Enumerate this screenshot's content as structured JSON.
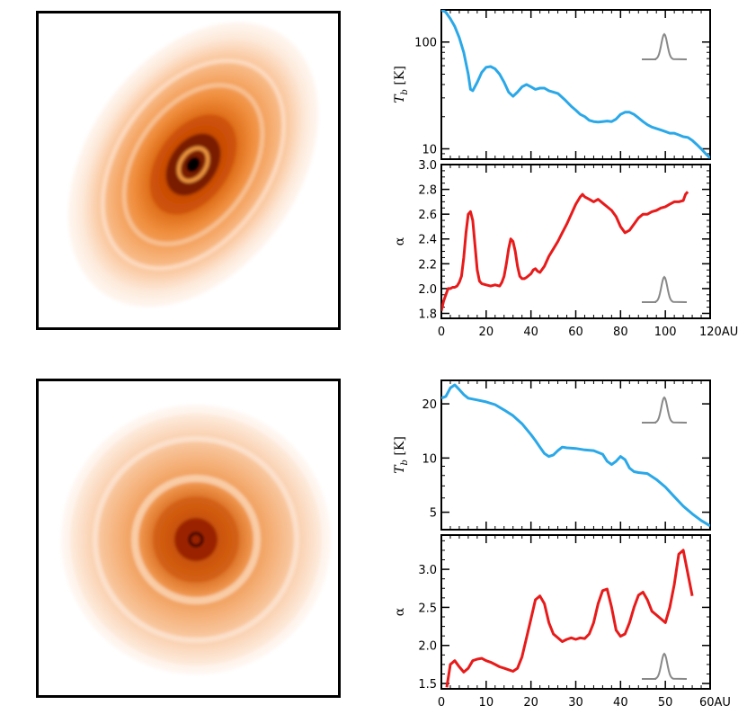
{
  "chart_data": [
    {
      "id": "top-tb",
      "type": "line",
      "ylabel": "T_b [K]",
      "ylabel_main": "T",
      "ylabel_sub": "b",
      "ylabel_unit": " [K]",
      "yscale": "log",
      "ylim": [
        8,
        200
      ],
      "xlim": [
        0,
        120
      ],
      "yticks": [
        10,
        100
      ],
      "ytick_labels": [
        "10",
        "100"
      ],
      "color": "#2aa8e8",
      "x": [
        0,
        2,
        4,
        6,
        8,
        10,
        12,
        13,
        14,
        16,
        18,
        20,
        22,
        24,
        26,
        28,
        30,
        32,
        34,
        36,
        38,
        40,
        42,
        44,
        46,
        48,
        50,
        52,
        55,
        58,
        60,
        62,
        64,
        66,
        68,
        70,
        72,
        74,
        76,
        78,
        80,
        82,
        84,
        86,
        88,
        90,
        92,
        94,
        96,
        98,
        100,
        102,
        104,
        106,
        108,
        110,
        112,
        114,
        116,
        118,
        120
      ],
      "y": [
        200,
        190,
        165,
        140,
        110,
        80,
        50,
        36,
        35,
        42,
        52,
        58,
        59,
        56,
        50,
        42,
        34,
        31,
        34,
        38,
        40,
        38,
        36,
        37,
        37,
        35,
        34,
        33,
        29,
        25,
        23,
        21,
        20,
        18.5,
        18,
        17.8,
        18,
        18.2,
        18,
        19,
        21,
        22,
        22,
        21,
        19.5,
        18,
        16.8,
        16,
        15.5,
        15,
        14.5,
        14,
        14,
        13.5,
        13,
        12.8,
        12,
        11,
        10,
        9,
        8.2
      ]
    },
    {
      "id": "top-alpha",
      "type": "line",
      "ylabel": "α",
      "yscale": "linear",
      "ylim": [
        1.76,
        3.0
      ],
      "xlim": [
        0,
        120
      ],
      "yticks": [
        1.8,
        2.0,
        2.2,
        2.4,
        2.6,
        2.8,
        3.0
      ],
      "ytick_labels": [
        "1.8",
        "2.0",
        "2.2",
        "2.4",
        "2.6",
        "2.8",
        "3.0"
      ],
      "xticks": [
        0,
        20,
        40,
        60,
        80,
        100
      ],
      "xtick_labels": [
        "0",
        "20",
        "40",
        "60",
        "80",
        "100"
      ],
      "xaxis_end_label": "120AU",
      "color": "#e81a1a",
      "x": [
        0,
        1,
        2,
        3,
        4,
        5,
        6,
        7,
        8,
        9,
        10,
        11,
        12,
        13,
        14,
        15,
        16,
        17,
        18,
        20,
        22,
        24,
        26,
        27,
        28,
        29,
        30,
        31,
        32,
        33,
        34,
        35,
        36,
        37,
        38,
        40,
        41,
        42,
        43,
        44,
        46,
        48,
        50,
        52,
        54,
        56,
        58,
        60,
        62,
        63,
        64,
        66,
        68,
        70,
        72,
        74,
        76,
        78,
        80,
        82,
        84,
        86,
        88,
        90,
        92,
        94,
        96,
        98,
        100,
        102,
        104,
        106,
        108,
        109,
        110
      ],
      "y": [
        1.82,
        1.9,
        1.95,
        2.0,
        2.0,
        2.01,
        2.01,
        2.02,
        2.05,
        2.1,
        2.25,
        2.45,
        2.6,
        2.62,
        2.55,
        2.35,
        2.15,
        2.06,
        2.04,
        2.03,
        2.02,
        2.03,
        2.02,
        2.05,
        2.1,
        2.2,
        2.32,
        2.4,
        2.38,
        2.3,
        2.18,
        2.1,
        2.08,
        2.08,
        2.09,
        2.12,
        2.15,
        2.16,
        2.14,
        2.13,
        2.18,
        2.26,
        2.32,
        2.38,
        2.45,
        2.52,
        2.6,
        2.68,
        2.74,
        2.76,
        2.74,
        2.72,
        2.7,
        2.72,
        2.69,
        2.66,
        2.63,
        2.58,
        2.5,
        2.45,
        2.47,
        2.52,
        2.57,
        2.6,
        2.6,
        2.62,
        2.63,
        2.65,
        2.66,
        2.68,
        2.7,
        2.7,
        2.71,
        2.76,
        2.78
      ]
    },
    {
      "id": "bottom-tb",
      "type": "line",
      "ylabel": "T_b [K]",
      "ylabel_main": "T",
      "ylabel_sub": "b",
      "ylabel_unit": " [K]",
      "yscale": "log",
      "ylim": [
        4,
        27
      ],
      "xlim": [
        0,
        60
      ],
      "yticks": [
        5,
        10,
        20
      ],
      "ytick_labels": [
        "5",
        "10",
        "20"
      ],
      "color": "#2aa8e8",
      "x": [
        0,
        1,
        2,
        3,
        4,
        5,
        6,
        8,
        10,
        12,
        14,
        16,
        18,
        20,
        21,
        22,
        23,
        24,
        25,
        26,
        27,
        28,
        30,
        32,
        34,
        36,
        37,
        38,
        39,
        40,
        41,
        42,
        43,
        44,
        46,
        48,
        50,
        52,
        54,
        56,
        58,
        60
      ],
      "y": [
        21.5,
        22,
        24.5,
        25.5,
        24,
        22.5,
        21.5,
        21,
        20.5,
        19.8,
        18.5,
        17.2,
        15.5,
        13.5,
        12.5,
        11.5,
        10.6,
        10.2,
        10.4,
        11,
        11.5,
        11.4,
        11.3,
        11.1,
        11,
        10.5,
        9.6,
        9.2,
        9.6,
        10.2,
        9.8,
        8.8,
        8.4,
        8.3,
        8.2,
        7.6,
        6.9,
        6.1,
        5.4,
        4.9,
        4.5,
        4.2
      ]
    },
    {
      "id": "bottom-alpha",
      "type": "line",
      "ylabel": "α",
      "yscale": "linear",
      "ylim": [
        1.43,
        3.45
      ],
      "xlim": [
        0,
        60
      ],
      "yticks": [
        1.5,
        2.0,
        2.5,
        3.0
      ],
      "ytick_labels": [
        "1.5",
        "2.0",
        "2.5",
        "3.0"
      ],
      "xticks": [
        0,
        10,
        20,
        30,
        40,
        50
      ],
      "xtick_labels": [
        "0",
        "10",
        "20",
        "30",
        "40",
        "50"
      ],
      "xaxis_end_label": "60AU",
      "color": "#e81a1a",
      "x": [
        1.2,
        1.6,
        2,
        3,
        4,
        5,
        6,
        7,
        8,
        9,
        10,
        11,
        12,
        13,
        14,
        15,
        16,
        17,
        18,
        19,
        20,
        21,
        22,
        23,
        24,
        25,
        26,
        27,
        28,
        29,
        30,
        31,
        32,
        33,
        34,
        35,
        36,
        37,
        38,
        39,
        40,
        41,
        42,
        43,
        44,
        45,
        46,
        47,
        48,
        49,
        50,
        51,
        52,
        53,
        54,
        55,
        56
      ],
      "y": [
        1.45,
        1.6,
        1.75,
        1.8,
        1.72,
        1.65,
        1.7,
        1.8,
        1.82,
        1.83,
        1.8,
        1.78,
        1.75,
        1.72,
        1.7,
        1.68,
        1.66,
        1.7,
        1.85,
        2.1,
        2.35,
        2.6,
        2.65,
        2.55,
        2.3,
        2.15,
        2.1,
        2.05,
        2.08,
        2.1,
        2.08,
        2.1,
        2.09,
        2.15,
        2.3,
        2.55,
        2.72,
        2.74,
        2.5,
        2.2,
        2.12,
        2.15,
        2.3,
        2.5,
        2.66,
        2.7,
        2.6,
        2.45,
        2.4,
        2.35,
        2.3,
        2.5,
        2.8,
        3.2,
        3.25,
        2.95,
        2.65
      ]
    }
  ],
  "images": [
    {
      "id": "top-image",
      "alt": "inclined disk with concentric rings"
    },
    {
      "id": "bottom-image",
      "alt": "face-on disk with concentric rings"
    }
  ],
  "beam_marker_color": "#888888"
}
